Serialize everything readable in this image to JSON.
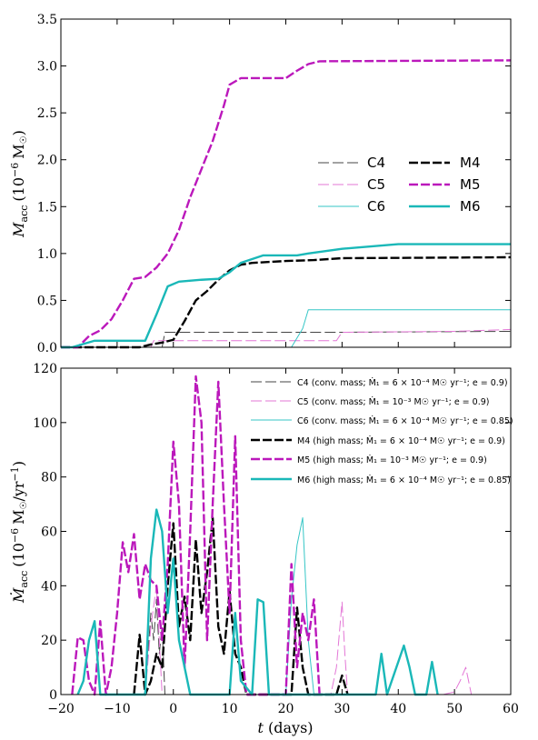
{
  "chart_data": [
    {
      "type": "line",
      "xlim": [
        -20,
        60
      ],
      "ylim": [
        0,
        3.5
      ],
      "ylabel": "M_acc (10^-6 M_sun)",
      "ylabel_main": "M",
      "ylabel_sub": "acc",
      "ylabel_unit": "(10",
      "ylabel_exp": "−6",
      "ylabel_unit2": "M",
      "ylabel_close": ")",
      "y_ticks": [
        0.0,
        0.5,
        1.0,
        1.5,
        2.0,
        2.5,
        3.0,
        3.5
      ],
      "y_tick_labels": [
        "0.0",
        "0.5",
        "1.0",
        "1.5",
        "2.0",
        "2.5",
        "3.0",
        "3.5"
      ],
      "legend": "center-right",
      "series": [
        {
          "name": "C4",
          "color": "#444444",
          "style": "thin-dash",
          "x": [
            -20,
            -18,
            -2,
            -1.5,
            30,
            60
          ],
          "y": [
            0,
            0,
            0,
            0.16,
            0.16,
            0.17
          ]
        },
        {
          "name": "C5",
          "color": "#e377d6",
          "style": "thin-dash",
          "x": [
            -20,
            -4,
            -3.5,
            29,
            30,
            50,
            60
          ],
          "y": [
            0,
            0,
            0.07,
            0.07,
            0.16,
            0.17,
            0.19
          ]
        },
        {
          "name": "C6",
          "color": "#35c6c6",
          "style": "thin-solid",
          "x": [
            -20,
            21,
            23,
            24,
            60
          ],
          "y": [
            0,
            0,
            0.2,
            0.4,
            0.4
          ]
        },
        {
          "name": "M4",
          "color": "#000000",
          "style": "thick-dash",
          "x": [
            -20,
            -6,
            -4,
            -2,
            0,
            2,
            4,
            6,
            8,
            10,
            12,
            14,
            20,
            25,
            30,
            60
          ],
          "y": [
            0,
            0,
            0.03,
            0.05,
            0.08,
            0.28,
            0.5,
            0.6,
            0.72,
            0.82,
            0.88,
            0.9,
            0.92,
            0.93,
            0.95,
            0.96
          ]
        },
        {
          "name": "M5",
          "color": "#bb18bb",
          "style": "thick-dash",
          "x": [
            -20,
            -17,
            -15,
            -13,
            -11,
            -9,
            -7,
            -5,
            -3,
            -1,
            1,
            3,
            5,
            7,
            9,
            10,
            12,
            20,
            22,
            24,
            26,
            60
          ],
          "y": [
            0,
            0,
            0.12,
            0.18,
            0.3,
            0.5,
            0.73,
            0.75,
            0.85,
            1.0,
            1.25,
            1.6,
            1.9,
            2.2,
            2.58,
            2.8,
            2.87,
            2.87,
            2.95,
            3.02,
            3.05,
            3.06
          ]
        },
        {
          "name": "M6",
          "color": "#1ab8b8",
          "style": "thick-solid",
          "x": [
            -20,
            -18,
            -14,
            -5,
            -3,
            -1,
            1,
            5,
            8,
            10,
            12,
            16,
            20,
            22,
            24,
            30,
            40,
            60
          ],
          "y": [
            0,
            0,
            0.07,
            0.07,
            0.35,
            0.65,
            0.7,
            0.72,
            0.73,
            0.8,
            0.9,
            0.98,
            0.98,
            0.98,
            1.0,
            1.05,
            1.1,
            1.1
          ]
        }
      ]
    },
    {
      "type": "line",
      "xlim": [
        -20,
        60
      ],
      "ylim": [
        0,
        120
      ],
      "xlabel": "t (days)",
      "xlabel_var": "t",
      "xlabel_unit": "(days)",
      "ylabel": "Ṁ_acc (10^-6 M_sun/yr^-1)",
      "ylabel_main": "Ṁ",
      "ylabel_sub": "acc",
      "ylabel_unit": "(10",
      "ylabel_exp": "−6",
      "ylabel_unit2": "M",
      "ylabel_close2": "/yr",
      "ylabel_exp2": "−1",
      "ylabel_close": ")",
      "x_ticks": [
        -20,
        -10,
        0,
        10,
        20,
        30,
        40,
        50,
        60
      ],
      "x_tick_labels": [
        "−20",
        "−10",
        "0",
        "10",
        "20",
        "30",
        "40",
        "50",
        "60"
      ],
      "y_ticks": [
        0,
        20,
        40,
        60,
        80,
        100,
        120
      ],
      "y_tick_labels": [
        "0",
        "20",
        "40",
        "60",
        "80",
        "100",
        "120"
      ],
      "legend": "upper-right",
      "series": [
        {
          "name": "C4 (conv. mass; Ṁ₁ = 6 × 10⁻⁴ M☉ yr⁻¹; e = 0.9)",
          "color": "#444444",
          "style": "thin-dash",
          "x": [
            -5,
            -4,
            -3.5,
            -3,
            -2.5,
            -2,
            -1.5
          ],
          "y": [
            0,
            30,
            20,
            35,
            15,
            25,
            0
          ]
        },
        {
          "name": "C5 (conv. mass; Ṁ₁ = 10⁻³ M☉ yr⁻¹; e = 0.9)",
          "color": "#e377d6",
          "style": "thin-dash",
          "x": [
            -5,
            -4,
            -3,
            -2.5,
            -2,
            28,
            29,
            30,
            30.5,
            31,
            48,
            50,
            51,
            52,
            53
          ],
          "y": [
            0,
            25,
            40,
            20,
            0,
            0,
            10,
            34,
            15,
            0,
            0,
            1,
            5,
            10,
            0
          ]
        },
        {
          "name": "C6 (conv. mass; Ṁ₁ = 6 × 10⁻⁴ M☉ yr⁻¹; e = 0.85)",
          "color": "#35c6c6",
          "style": "thin-solid",
          "x": [
            20,
            21,
            22,
            23,
            24,
            25
          ],
          "y": [
            0,
            35,
            55,
            65,
            20,
            0
          ]
        },
        {
          "name": "M4 (high mass; Ṁ₁ = 6 × 10⁻⁴ M☉ yr⁻¹; e = 0.9)",
          "color": "#000000",
          "style": "thick-dash",
          "x": [
            -7,
            -6,
            -5,
            -4,
            -3,
            -2,
            -1,
            0,
            1,
            2,
            3,
            4,
            5,
            6,
            7,
            8,
            9,
            10,
            11,
            12,
            13,
            21,
            22,
            23,
            24,
            29,
            30,
            31
          ],
          "y": [
            0,
            22,
            0,
            5,
            15,
            10,
            40,
            63,
            25,
            36,
            20,
            57,
            30,
            45,
            65,
            25,
            15,
            38,
            15,
            10,
            0,
            0,
            32,
            10,
            0,
            0,
            7,
            0
          ]
        },
        {
          "name": "M5 (high mass; Ṁ₁ = 10⁻³ M☉ yr⁻¹; e = 0.9)",
          "color": "#bb18bb",
          "style": "thick-dash",
          "x": [
            -18,
            -17,
            -16,
            -15,
            -14,
            -13,
            -12,
            -11,
            -10,
            -9,
            -8,
            -7,
            -6,
            -5,
            -4,
            -3,
            -2,
            -1,
            0,
            1,
            2,
            3,
            4,
            5,
            6,
            7,
            8,
            9,
            10,
            11,
            12,
            13,
            20,
            21,
            22,
            23,
            24,
            25,
            26
          ],
          "y": [
            0,
            21,
            20,
            5,
            0,
            27,
            0,
            10,
            30,
            56,
            45,
            59,
            35,
            48,
            42,
            40,
            20,
            48,
            93,
            70,
            10,
            60,
            117,
            100,
            20,
            70,
            115,
            70,
            30,
            95,
            20,
            0,
            0,
            48,
            10,
            30,
            20,
            35,
            0
          ]
        },
        {
          "name": "M6 (high mass; Ṁ₁ = 6 × 10⁻⁴ M☉ yr⁻¹; e = 0.85)",
          "color": "#1ab8b8",
          "style": "thick-solid",
          "x": [
            -17,
            -16,
            -15,
            -14,
            -13,
            -5,
            -4,
            -3,
            -2,
            -1,
            0,
            1,
            2,
            3,
            10,
            11,
            12,
            14,
            15,
            16,
            17,
            36,
            37,
            38,
            41,
            42,
            43,
            45,
            46,
            47
          ],
          "y": [
            0,
            5,
            20,
            27,
            0,
            0,
            50,
            68,
            60,
            30,
            50,
            20,
            10,
            0,
            0,
            30,
            5,
            0,
            35,
            34,
            0,
            0,
            15,
            0,
            18,
            10,
            0,
            0,
            12,
            0
          ]
        }
      ]
    }
  ]
}
